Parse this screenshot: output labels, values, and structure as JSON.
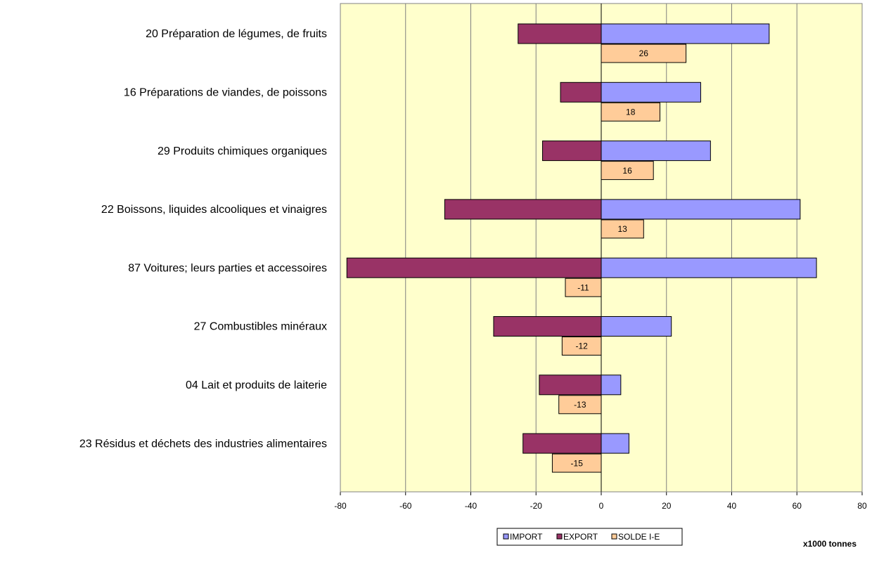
{
  "chart_data": {
    "type": "bar",
    "orientation": "horizontal",
    "categories": [
      "20 Préparation de légumes, de fruits",
      "16 Préparations de viandes, de poissons",
      "29 Produits chimiques organiques",
      "22 Boissons, liquides alcooliques et vinaigres",
      "87 Voitures; leurs parties et accessoires",
      "27 Combustibles minéraux",
      "04 Lait et produits de laiterie",
      "23 Résidus et déchets des industries alimentaires"
    ],
    "series": [
      {
        "name": "IMPORT",
        "color": "#9999ff",
        "values": [
          51.5,
          30.5,
          33.5,
          61,
          66,
          21.5,
          6,
          8.5
        ]
      },
      {
        "name": "EXPORT",
        "color": "#993366",
        "values": [
          -25.5,
          -12.5,
          -18,
          -48,
          -78,
          -33,
          -19,
          -24
        ]
      },
      {
        "name": "SOLDE I-E",
        "color": "#ffcc99",
        "values": [
          26,
          18,
          16,
          13,
          -11,
          -12,
          -13,
          -15
        ]
      }
    ],
    "xlabel": "x1000 tonnes",
    "xlim": [
      -80,
      80
    ],
    "xticks": [
      -80,
      -60,
      -40,
      -20,
      0,
      20,
      40,
      60,
      80
    ],
    "grid": true,
    "legend": "bottom",
    "background": "#ffffcc"
  }
}
